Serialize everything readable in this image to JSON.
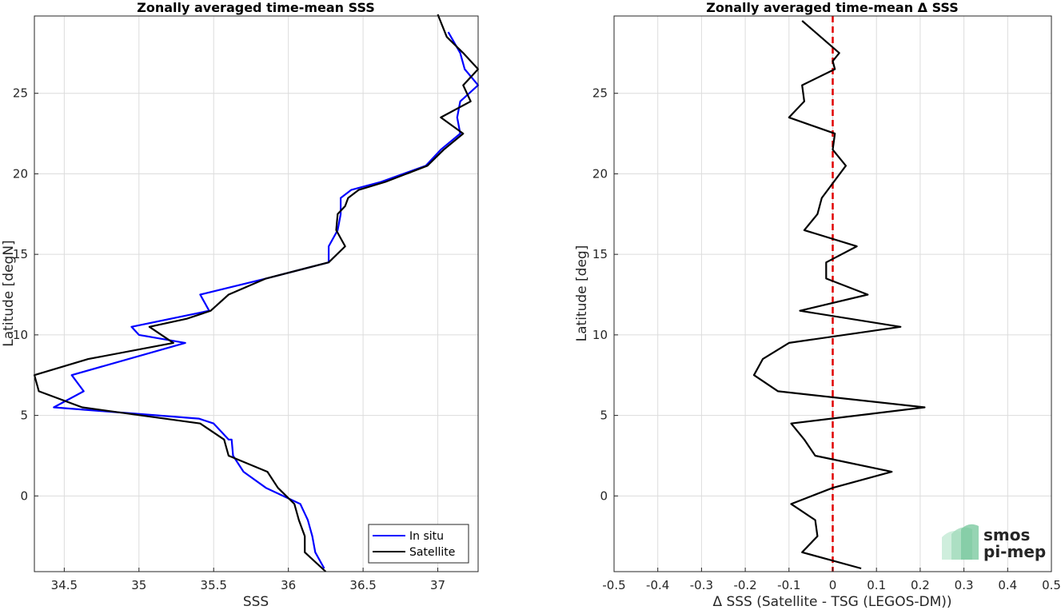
{
  "chart_data": [
    {
      "type": "line",
      "title": "Zonally averaged time-mean SSS",
      "xlabel": "SSS",
      "ylabel": "Latitude [degN]",
      "xlim": [
        34.3,
        37.27
      ],
      "ylim": [
        -4.7,
        29.8
      ],
      "xticks": [
        34.5,
        35,
        35.5,
        36,
        36.5,
        37
      ],
      "xtick_labels": [
        "34.5",
        "35",
        "35.5",
        "36",
        "36.5",
        "37"
      ],
      "yticks": [
        0,
        5,
        10,
        15,
        20,
        25
      ],
      "ytick_labels": [
        "0",
        "5",
        "10",
        "15",
        "20",
        "25"
      ],
      "grid": true,
      "legend_position": "bottom-right",
      "series": [
        {
          "name": "In situ",
          "color": "#0000ff",
          "x": [
            36.24,
            36.18,
            36.16,
            36.13,
            36.08,
            35.85,
            35.7,
            35.63,
            35.62,
            35.6,
            35.5,
            35.4,
            34.43,
            34.63,
            34.55,
            35.31,
            35.0,
            34.95,
            35.47,
            35.41,
            35.85,
            36.27,
            36.27,
            36.33,
            36.35,
            36.35,
            36.42,
            36.62,
            36.92,
            37.02,
            37.15,
            37.13,
            37.15,
            37.27,
            37.18,
            37.15,
            37.07
          ],
          "y": [
            -4.5,
            -3.5,
            -2.5,
            -1.5,
            -0.5,
            0.5,
            1.5,
            2.5,
            3.5,
            3.5,
            4.5,
            4.8,
            5.5,
            6.5,
            7.5,
            9.5,
            10.0,
            10.5,
            11.5,
            12.5,
            13.5,
            14.5,
            15.5,
            16.5,
            17.5,
            18.5,
            19.0,
            19.5,
            20.5,
            21.5,
            22.5,
            23.5,
            24.5,
            25.5,
            26.5,
            27.5,
            28.8
          ]
        },
        {
          "name": "Satellite",
          "color": "#000000",
          "x": [
            36.25,
            36.11,
            36.11,
            36.07,
            36.04,
            35.93,
            35.86,
            35.6,
            35.57,
            35.41,
            34.62,
            34.33,
            34.3,
            34.66,
            35.23,
            35.07,
            35.32,
            35.48,
            35.6,
            35.85,
            36.27,
            36.38,
            36.32,
            36.33,
            36.38,
            36.4,
            36.47,
            36.65,
            36.93,
            37.04,
            37.17,
            37.02,
            37.22,
            37.17,
            37.27,
            37.17,
            37.06,
            37.0
          ],
          "y": [
            -4.7,
            -3.5,
            -2.5,
            -1.5,
            -0.5,
            0.5,
            1.5,
            2.5,
            3.5,
            4.5,
            5.5,
            6.5,
            7.5,
            8.5,
            9.5,
            10.5,
            11.0,
            11.5,
            12.5,
            13.5,
            14.5,
            15.5,
            16.5,
            17.5,
            18.0,
            18.5,
            19.0,
            19.5,
            20.5,
            21.5,
            22.5,
            23.5,
            24.5,
            25.5,
            26.5,
            27.5,
            28.5,
            29.9
          ]
        }
      ]
    },
    {
      "type": "line",
      "title": "Zonally averaged time-mean Δ SSS",
      "xlabel": "Δ SSS (Satellite - TSG (LEGOS-DM))",
      "ylabel": "Latitude [deg]",
      "xlim": [
        -0.5,
        0.5
      ],
      "ylim": [
        -4.7,
        29.8
      ],
      "xticks": [
        -0.5,
        -0.4,
        -0.3,
        -0.2,
        -0.1,
        0,
        0.1,
        0.2,
        0.3,
        0.4,
        0.5
      ],
      "xtick_labels": [
        "-0.5",
        "-0.4",
        "-0.3",
        "-0.2",
        "-0.1",
        "0",
        "0.1",
        "0.2",
        "0.3",
        "0.4",
        "0.5"
      ],
      "yticks": [
        0,
        5,
        10,
        15,
        20,
        25
      ],
      "ytick_labels": [
        "0",
        "5",
        "10",
        "15",
        "20",
        "25"
      ],
      "grid": true,
      "reference_line": {
        "x": 0,
        "color": "#e00000",
        "style": "dashed"
      },
      "series": [
        {
          "color": "#000000",
          "x": [
            0.065,
            -0.07,
            -0.035,
            -0.04,
            -0.095,
            0.0,
            0.135,
            -0.04,
            -0.065,
            -0.095,
            0.21,
            -0.125,
            -0.18,
            -0.16,
            -0.1,
            0.155,
            -0.075,
            0.08,
            -0.015,
            -0.015,
            0.055,
            -0.065,
            -0.035,
            -0.025,
            0.03,
            0.0,
            0.005,
            -0.1,
            -0.065,
            -0.07,
            0.005,
            0.0,
            0.015,
            -0.07
          ],
          "y": [
            -4.5,
            -3.5,
            -2.5,
            -1.5,
            -0.5,
            0.5,
            1.5,
            2.5,
            3.5,
            4.5,
            5.5,
            6.5,
            7.5,
            8.5,
            9.5,
            10.5,
            11.5,
            12.5,
            13.5,
            14.5,
            15.5,
            16.5,
            17.5,
            18.5,
            20.5,
            21.5,
            22.5,
            23.5,
            24.5,
            25.5,
            26.5,
            27.0,
            27.5,
            29.5
          ]
        }
      ]
    }
  ],
  "legend": {
    "items": [
      "In situ",
      "Satellite"
    ]
  },
  "logo": {
    "line1": "smos",
    "line2": "pi-mep",
    "color": "#7cc9a0"
  }
}
